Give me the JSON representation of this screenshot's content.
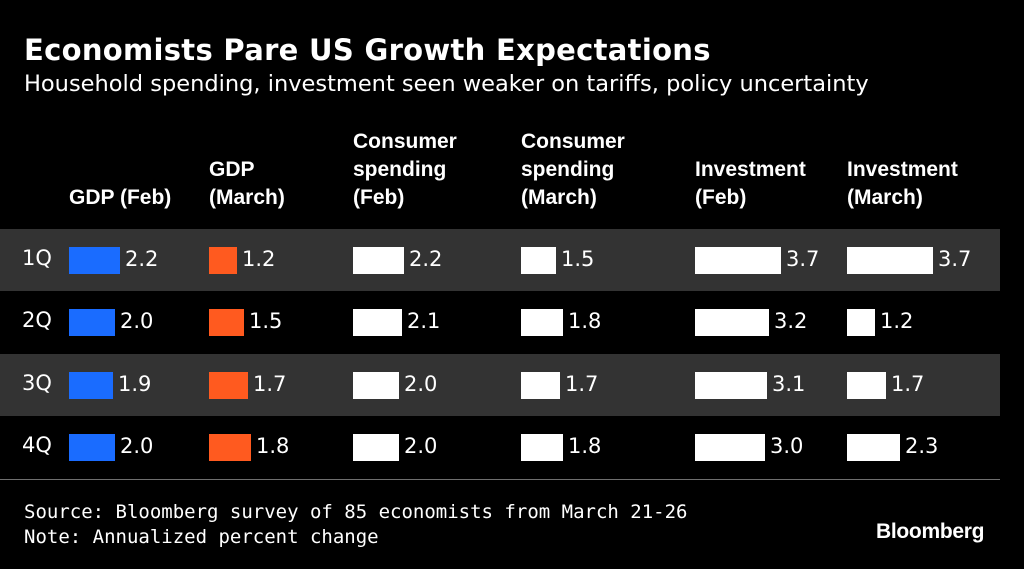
{
  "title": "Economists Pare US Growth Expectations",
  "subtitle": "Household spending, investment seen weaker on tariffs, policy uncertainty",
  "source": "Source: Bloomberg survey of 85 economists from March 21-26",
  "note": "Note: Annualized percent change",
  "logo": "Bloomberg",
  "colors": {
    "gdp_feb": "#1a6cff",
    "gdp_march": "#ff5a1f",
    "other": "#ffffff",
    "row_shade": "#333333",
    "background": "#000000"
  },
  "chart_data": {
    "type": "bar",
    "layout": "bar-table",
    "categories": [
      "1Q",
      "2Q",
      "3Q",
      "4Q"
    ],
    "series": [
      {
        "name": "GDP (Feb)",
        "values": [
          2.2,
          2.0,
          1.9,
          2.0
        ]
      },
      {
        "name": "GDP\n(March)",
        "values": [
          1.2,
          1.5,
          1.7,
          1.8
        ]
      },
      {
        "name": "Consumer\nspending\n(Feb)",
        "values": [
          2.2,
          2.1,
          2.0,
          2.0
        ]
      },
      {
        "name": "Consumer\nspending\n(March)",
        "values": [
          1.5,
          1.8,
          1.7,
          1.8
        ]
      },
      {
        "name": "Investment\n(Feb)",
        "values": [
          3.7,
          3.2,
          3.1,
          3.0
        ]
      },
      {
        "name": "Investment\n(March)",
        "values": [
          3.7,
          1.2,
          1.7,
          2.3
        ]
      }
    ],
    "value_labels": [
      [
        "2.2",
        "2.0",
        "1.9",
        "2.0"
      ],
      [
        "1.2",
        "1.5",
        "1.7",
        "1.8"
      ],
      [
        "2.2",
        "2.1",
        "2.0",
        "2.0"
      ],
      [
        "1.5",
        "1.8",
        "1.7",
        "1.8"
      ],
      [
        "3.7",
        "3.2",
        "3.1",
        "3.0"
      ],
      [
        "3.7",
        "1.2",
        "1.7",
        "2.3"
      ]
    ],
    "xlabel": "",
    "ylabel": "",
    "grid": false,
    "legend": "none"
  }
}
